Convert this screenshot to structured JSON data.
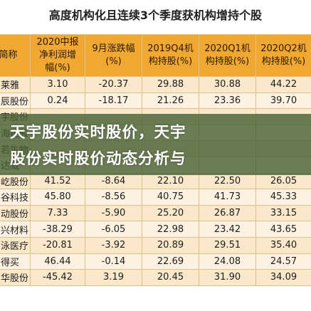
{
  "title": "高度机构化且连续3个季度获机构增持个股",
  "headers": [
    "简称",
    "2020中报净利润增幅(%)",
    "9月涨跌幅(%)",
    "2019Q4机构持股(%)",
    "2020Q1机构持股(%)",
    "2020Q2机构持股(%)"
  ],
  "header_display": [
    "简称",
    "2020中报\n净利润增\n幅(%)",
    "9月涨跌幅\n(%)",
    "2019Q4机\n构持股(%)",
    "2020Q1机\n构持股(%)",
    "2020Q2机\n构持股(%)"
  ],
  "rows": [
    [
      "莱雅",
      "3.10",
      "-20.37",
      "29.88",
      "30.88",
      "44.22"
    ],
    [
      "辰股份",
      "0.24",
      "-18.17",
      "21.26",
      "23.36",
      "39.70"
    ],
    [
      "宇股份",
      "",
      "",
      "",
      "",
      ""
    ],
    [
      "海控股",
      "",
      "",
      "",
      "",
      ""
    ],
    [
      "若生物",
      "",
      "",
      "",
      "",
      ""
    ],
    [
      "达威",
      "",
      "",
      "",
      "",
      ""
    ],
    [
      "屹股份",
      "41.52",
      "-8.64",
      "22.10",
      "22.50",
      "26.05"
    ],
    [
      "谷科技",
      "45.80",
      "-8.56",
      "40.75",
      "41.73",
      "45.33"
    ],
    [
      "动股份",
      "7.33",
      "-5.90",
      "25.20",
      "26.87",
      "33.15"
    ],
    [
      "兴材料",
      "-38.29",
      "-6.05",
      "22.98",
      "23.42",
      "43.65"
    ],
    [
      "泳医疗",
      "-20.81",
      "-3.92",
      "20.89",
      "29.51",
      "35.40"
    ],
    [
      "得买",
      "46.44",
      "-0.14",
      "22.69",
      "24.08",
      "24.57"
    ],
    [
      "华股份",
      "-45.42",
      "3.19",
      "20.45",
      "31.90",
      "34.09"
    ]
  ],
  "banner": {
    "line1": "天宇股份实时股价，天宇",
    "line2": "股份实时股价动态分析与"
  }
}
